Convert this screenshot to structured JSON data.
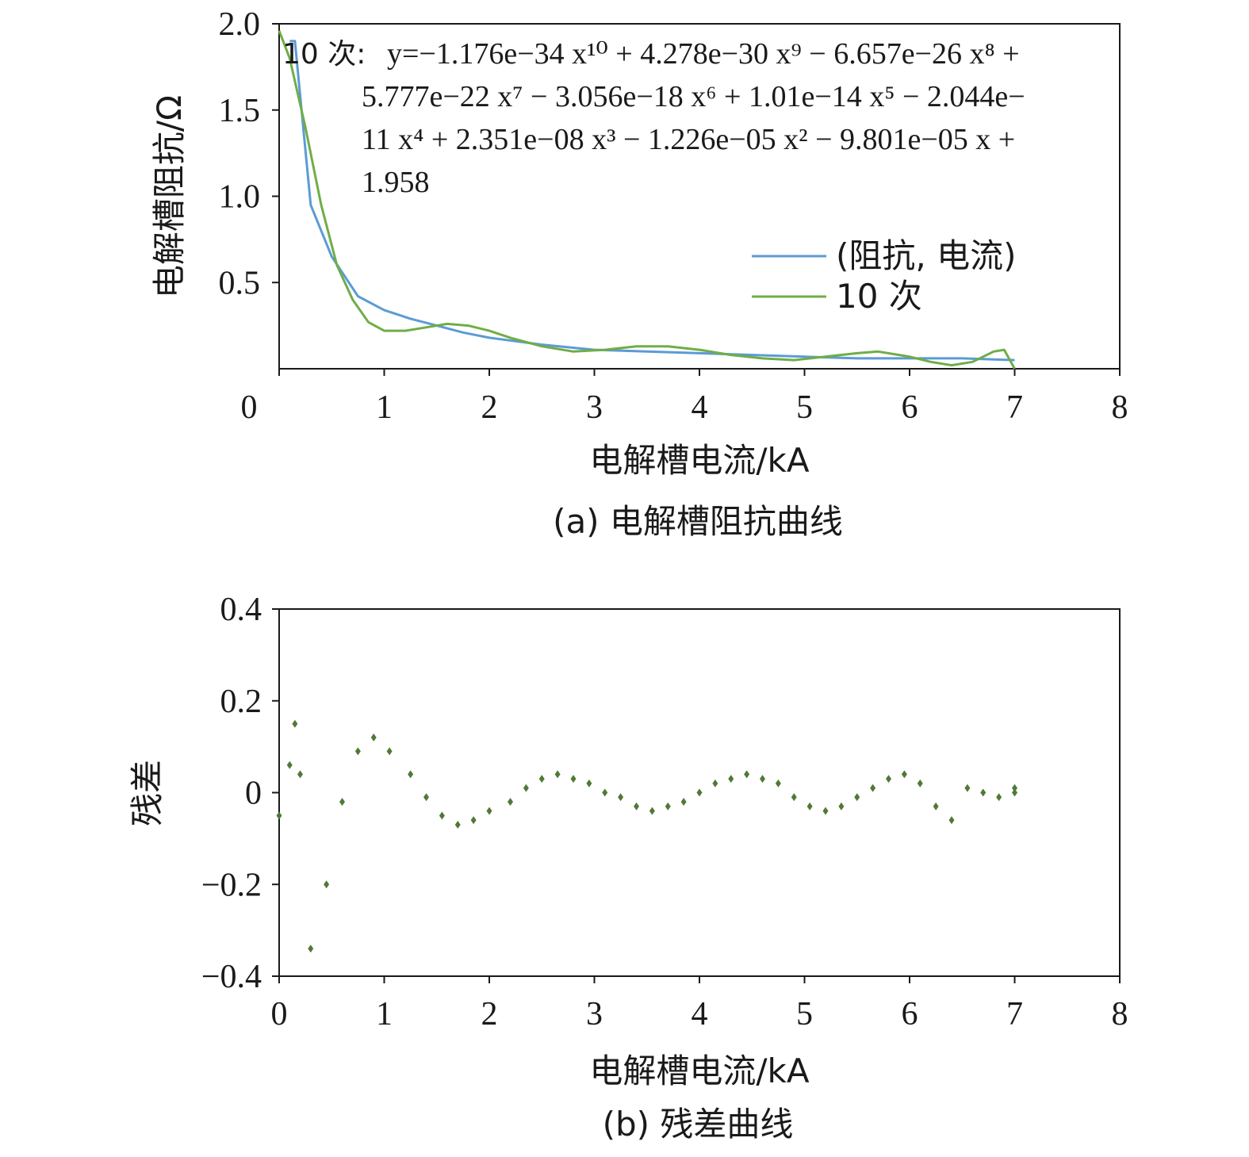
{
  "chart_data": [
    {
      "type": "line",
      "xlabel": "电解槽电流/kA",
      "ylabel": "电解槽阻抗/Ω",
      "caption": "(a) 电解槽阻抗曲线",
      "xlim": [
        0,
        8
      ],
      "ylim": [
        0,
        2.0
      ],
      "x_ticks": [
        "0",
        "1",
        "2",
        "3",
        "4",
        "5",
        "6",
        "7",
        "8"
      ],
      "y_ticks": [
        "0.5",
        "1.0",
        "1.5",
        "2.0"
      ],
      "grid": false,
      "legend_position": "right",
      "equation": {
        "line1_prefix": "10 次:",
        "line1": "y=−1.176e−34 x¹⁰ + 4.278e−30 x⁹ − 6.657e−26 x⁸ +",
        "line2": "5.777e−22 x⁷ − 3.056e−18 x⁶ + 1.01e−14 x⁵ − 2.044e−",
        "line3": "11 x⁴ + 2.351e−08 x³ − 1.226e−05 x² − 9.801e−05 x +",
        "line4": "1.958"
      },
      "series": [
        {
          "name": "(阻抗, 电流)",
          "color": "#5b9bd5",
          "x": [
            0.1,
            0.15,
            0.3,
            0.5,
            0.75,
            1.0,
            1.25,
            1.5,
            1.75,
            2.0,
            2.5,
            3.0,
            3.5,
            4.0,
            4.5,
            5.0,
            5.5,
            6.0,
            6.5,
            7.0
          ],
          "y": [
            1.9,
            1.9,
            0.95,
            0.65,
            0.42,
            0.34,
            0.29,
            0.25,
            0.21,
            0.18,
            0.14,
            0.11,
            0.1,
            0.09,
            0.08,
            0.07,
            0.06,
            0.06,
            0.06,
            0.05
          ]
        },
        {
          "name": "10 次",
          "color": "#70ad47",
          "x": [
            0.0,
            0.1,
            0.25,
            0.4,
            0.55,
            0.7,
            0.85,
            1.0,
            1.2,
            1.4,
            1.6,
            1.8,
            2.0,
            2.2,
            2.5,
            2.8,
            3.1,
            3.4,
            3.7,
            4.0,
            4.3,
            4.6,
            4.9,
            5.2,
            5.5,
            5.7,
            6.0,
            6.2,
            6.4,
            6.6,
            6.8,
            6.9,
            7.0
          ],
          "y": [
            1.96,
            1.8,
            1.4,
            0.95,
            0.6,
            0.4,
            0.27,
            0.22,
            0.22,
            0.24,
            0.26,
            0.25,
            0.22,
            0.18,
            0.13,
            0.1,
            0.11,
            0.13,
            0.13,
            0.11,
            0.08,
            0.06,
            0.05,
            0.07,
            0.09,
            0.1,
            0.07,
            0.04,
            0.02,
            0.04,
            0.1,
            0.11,
            0.0
          ]
        }
      ]
    },
    {
      "type": "scatter",
      "xlabel": "电解槽电流/kA",
      "ylabel": "残差",
      "caption": "(b) 残差曲线",
      "xlim": [
        0,
        8
      ],
      "ylim": [
        -0.4,
        0.4
      ],
      "x_ticks": [
        "0",
        "1",
        "2",
        "3",
        "4",
        "5",
        "6",
        "7",
        "8"
      ],
      "y_ticks": [
        "−0.4",
        "−0.2",
        "0",
        "0.2",
        "0.4"
      ],
      "grid": false,
      "series": [
        {
          "color": "#4f7a36",
          "x": [
            0.0,
            0.1,
            0.15,
            0.2,
            0.3,
            0.45,
            0.6,
            0.75,
            0.9,
            1.05,
            1.25,
            1.4,
            1.55,
            1.7,
            1.85,
            2.0,
            2.2,
            2.35,
            2.5,
            2.65,
            2.8,
            2.95,
            3.1,
            3.25,
            3.4,
            3.55,
            3.7,
            3.85,
            4.0,
            4.15,
            4.3,
            4.45,
            4.6,
            4.75,
            4.9,
            5.05,
            5.2,
            5.35,
            5.5,
            5.65,
            5.8,
            5.95,
            6.1,
            6.25,
            6.4,
            6.55,
            6.7,
            6.85,
            7.0,
            7.0
          ],
          "y": [
            -0.05,
            0.06,
            0.15,
            0.04,
            -0.34,
            -0.2,
            -0.02,
            0.09,
            0.12,
            0.09,
            0.04,
            -0.01,
            -0.05,
            -0.07,
            -0.06,
            -0.04,
            -0.02,
            0.01,
            0.03,
            0.04,
            0.03,
            0.02,
            0.0,
            -0.01,
            -0.03,
            -0.04,
            -0.03,
            -0.02,
            0.0,
            0.02,
            0.03,
            0.04,
            0.03,
            0.02,
            -0.01,
            -0.03,
            -0.04,
            -0.03,
            -0.01,
            0.01,
            0.03,
            0.04,
            0.02,
            -0.03,
            -0.06,
            0.01,
            0.0,
            -0.01,
            0.01,
            0.0
          ]
        }
      ]
    }
  ]
}
